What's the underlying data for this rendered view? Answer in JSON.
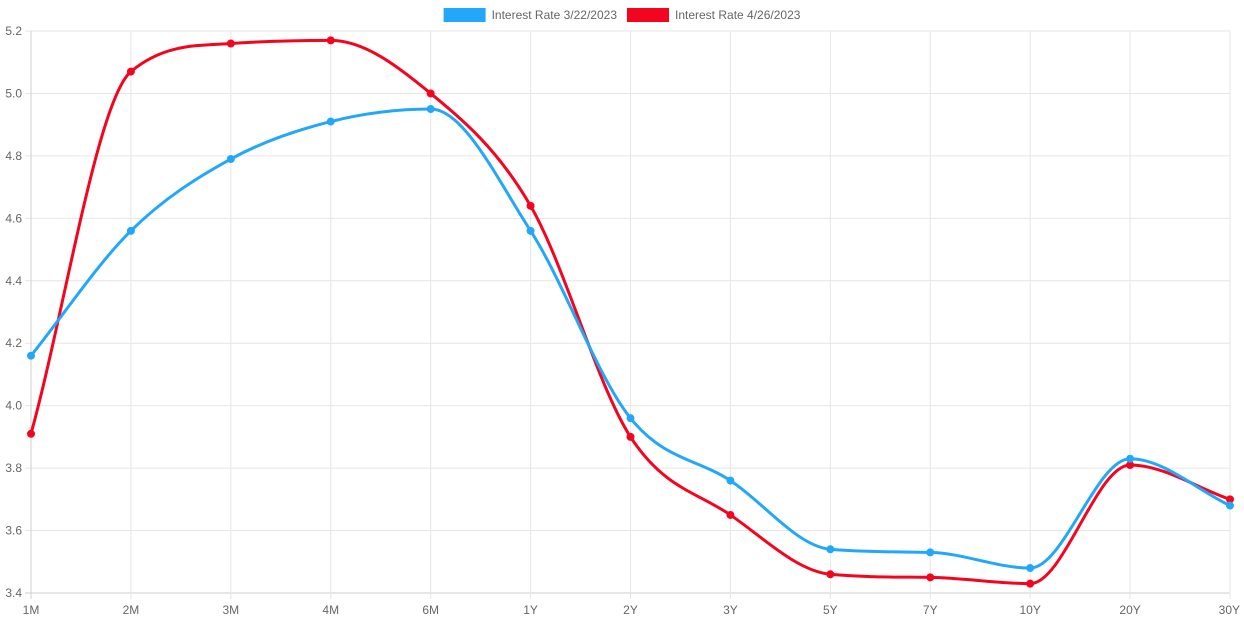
{
  "chart_data": {
    "type": "line",
    "title": "",
    "xlabel": "",
    "ylabel": "",
    "categories": [
      "1M",
      "2M",
      "3M",
      "4M",
      "6M",
      "1Y",
      "2Y",
      "3Y",
      "5Y",
      "7Y",
      "10Y",
      "20Y",
      "30Y"
    ],
    "ylim": [
      3.4,
      5.2
    ],
    "yticks": [
      "3.4",
      "3.6",
      "3.8",
      "4.0",
      "4.2",
      "4.4",
      "4.6",
      "4.8",
      "5.0",
      "5.2"
    ],
    "grid": true,
    "legend_position": "top-center",
    "curve": "smooth",
    "series": [
      {
        "name": "Interest Rate 3/22/2023",
        "color": "#22a7f9",
        "values": [
          4.16,
          4.56,
          4.79,
          4.91,
          4.95,
          4.56,
          3.96,
          3.76,
          3.54,
          3.53,
          3.48,
          3.83,
          3.68
        ]
      },
      {
        "name": "Interest Rate 4/26/2023",
        "color": "#f4051f",
        "values": [
          3.91,
          5.07,
          5.16,
          5.17,
          5.0,
          4.64,
          3.9,
          3.65,
          3.46,
          3.45,
          3.43,
          3.81,
          3.7
        ]
      }
    ]
  }
}
